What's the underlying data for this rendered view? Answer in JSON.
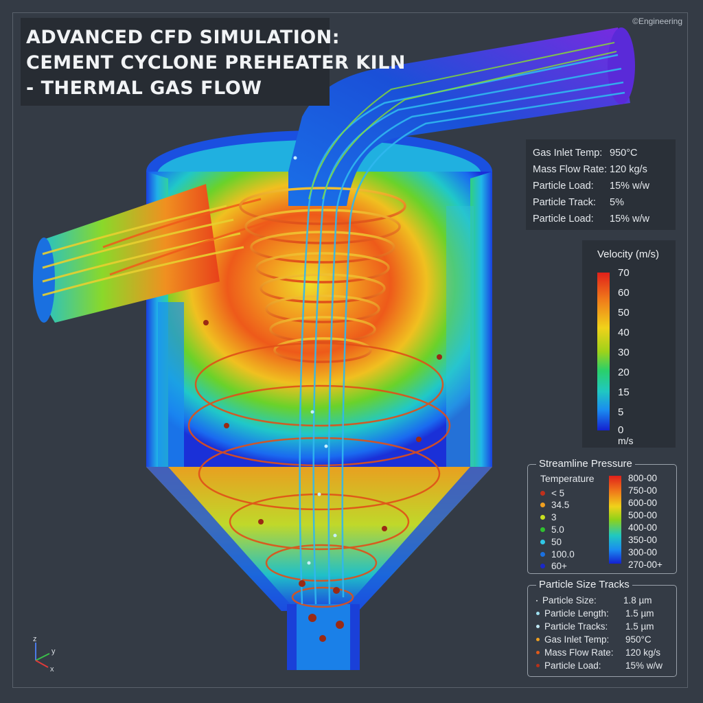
{
  "title": {
    "line1": "ADVANCED CFD SIMULATION:",
    "line2": "CEMENT CYCLONE PREHEATER KILN",
    "line3": "- THERMAL GAS FLOW"
  },
  "credit": "©Engineering",
  "info": [
    {
      "label": "Gas Inlet Temp:",
      "value": "950°C"
    },
    {
      "label": "Mass Flow Rate:",
      "value": "120 kg/s"
    },
    {
      "label": "Particle Load:",
      "value": "15% w/w"
    },
    {
      "label": "Particle Track:",
      "value": "5%"
    },
    {
      "label": "Particle Load:",
      "value": "15% w/w"
    }
  ],
  "velocity_legend": {
    "title": "Velocity (m/s)",
    "ticks": [
      "70",
      "60",
      "50",
      "40",
      "30",
      "20",
      "15",
      "5",
      "0"
    ],
    "unit": "m/s"
  },
  "pressure_legend": {
    "title": "Streamline Pressure",
    "temperature_heading": "Temperature",
    "temperature_items": [
      {
        "label": "< 5",
        "color": "#c0301c"
      },
      {
        "label": "34.5",
        "color": "#f0a020"
      },
      {
        "label": "3",
        "color": "#c8e020"
      },
      {
        "label": "5.0",
        "color": "#30c030"
      },
      {
        "label": "50",
        "color": "#30c8e8"
      },
      {
        "label": "100.0",
        "color": "#1a70e0"
      },
      {
        "label": "60+",
        "color": "#1a28c8"
      }
    ],
    "ticks": [
      "800-00",
      "750-00",
      "600-00",
      "500-00",
      "400-00",
      "350-00",
      "300-00",
      "270-00+"
    ]
  },
  "particle_legend": {
    "title": "Particle Size Tracks",
    "rows": [
      {
        "label": "Particle Size:",
        "value": "1.8 µm",
        "marker": "·",
        "color": "#d8dde2"
      },
      {
        "label": "Particle Length:",
        "value": "1.5 µm",
        "marker": "dot",
        "color": "#9ee0f0"
      },
      {
        "label": "Particle Tracks:",
        "value": "1.5 µm",
        "marker": "dot",
        "color": "#bfe8f5"
      },
      {
        "label": "Gas Inlet Temp:",
        "value": "950°C",
        "marker": "dot",
        "color": "#f0a020"
      },
      {
        "label": "Mass Flow Rate:",
        "value": "120 kg/s",
        "marker": "dot",
        "color": "#e05a1a"
      },
      {
        "label": "Particle Load:",
        "value": "15% w/w",
        "marker": "dot",
        "color": "#b83018"
      }
    ]
  },
  "axes": {
    "z": "z",
    "y": "y",
    "x": "x"
  }
}
